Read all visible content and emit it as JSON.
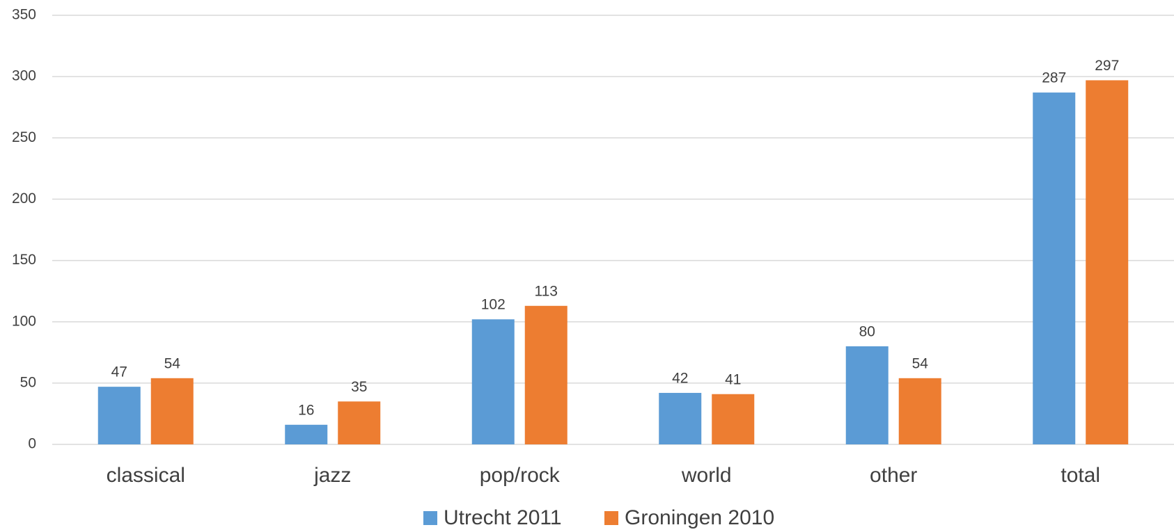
{
  "chart_data": {
    "type": "bar",
    "categories": [
      "classical",
      "jazz",
      "pop/rock",
      "world",
      "other",
      "total"
    ],
    "series": [
      {
        "name": "Utrecht 2011",
        "color": "#5b9bd5",
        "values": [
          47,
          16,
          102,
          42,
          80,
          287
        ]
      },
      {
        "name": "Groningen 2010",
        "color": "#ed7d31",
        "values": [
          54,
          35,
          113,
          41,
          54,
          297
        ]
      }
    ],
    "ylim": [
      0,
      350
    ],
    "yticks": [
      0,
      50,
      100,
      150,
      200,
      250,
      300,
      350
    ],
    "grid": true,
    "legend": "bottom"
  }
}
